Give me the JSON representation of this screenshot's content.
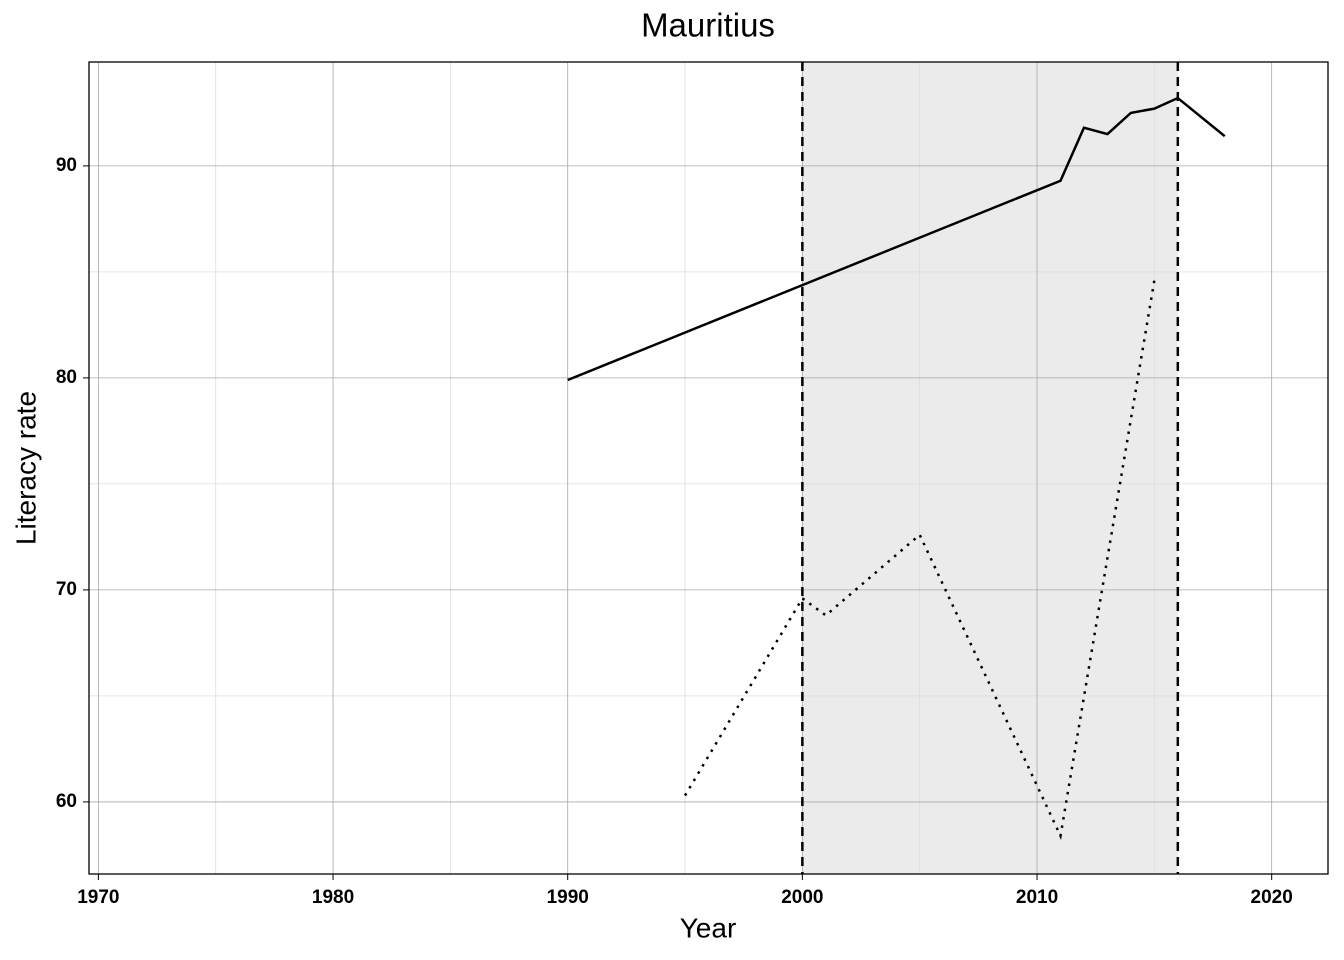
{
  "chart_data": {
    "type": "line",
    "title": "Mauritius",
    "x_label": "Year",
    "y_label": "Literacy rate",
    "xlim": [
      1969.6,
      2022.4
    ],
    "ylim": [
      56.6,
      94.9
    ],
    "xticks": [
      1970,
      1980,
      1990,
      2000,
      2010,
      2020
    ],
    "yticks": [
      60,
      70,
      80,
      90
    ],
    "minor_xticks": [
      1975,
      1985,
      1995,
      2005,
      2015
    ],
    "minor_yticks": [
      65,
      75,
      85
    ],
    "grid": true,
    "shade": {
      "range": [
        2000,
        2016
      ],
      "color": "#ebebeb",
      "line_color": "#000000"
    },
    "series": [
      {
        "color": "#000000",
        "dash": "solid",
        "x": [
          1990,
          2011,
          2012,
          2013,
          2014,
          2015,
          2016,
          2018
        ],
        "values": [
          79.9,
          89.3,
          91.8,
          91.5,
          92.5,
          92.7,
          93.2,
          91.4
        ]
      },
      {
        "color": "#000000",
        "dash": "dotted",
        "x": [
          1995,
          2000,
          2001,
          2005,
          2011,
          2015
        ],
        "values": [
          60.3,
          69.6,
          68.8,
          72.6,
          58.4,
          84.6
        ]
      }
    ]
  }
}
